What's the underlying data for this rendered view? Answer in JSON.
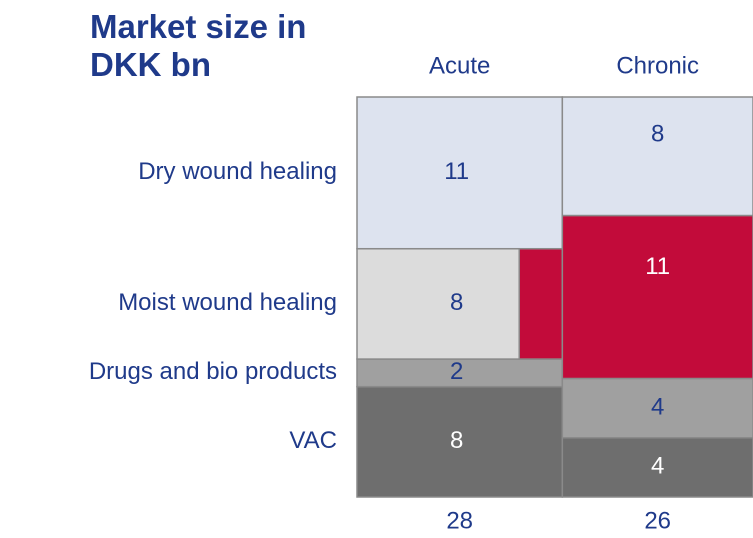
{
  "chart_data": {
    "type": "marimekko",
    "title": "Market size in DKK bn",
    "categories": [
      "Acute",
      "Chronic"
    ],
    "totals": [
      28,
      26
    ],
    "series": [
      {
        "name": "VAC",
        "values": [
          8,
          4
        ],
        "color": [
          "#6e6e6e",
          "#6e6e6e"
        ]
      },
      {
        "name": "Drugs and bio products",
        "values": [
          2,
          4
        ],
        "color": [
          "#a0a0a0",
          "#a0a0a0"
        ]
      },
      {
        "name": "Moist wound healing",
        "values": [
          8,
          11
        ],
        "color": [
          "#dcdcdc",
          "#c20b3a"
        ]
      },
      {
        "name": "Dry wound healing",
        "values": [
          11,
          8
        ],
        "color": [
          "#dde3ef",
          "#dde3ef"
        ]
      }
    ]
  }
}
